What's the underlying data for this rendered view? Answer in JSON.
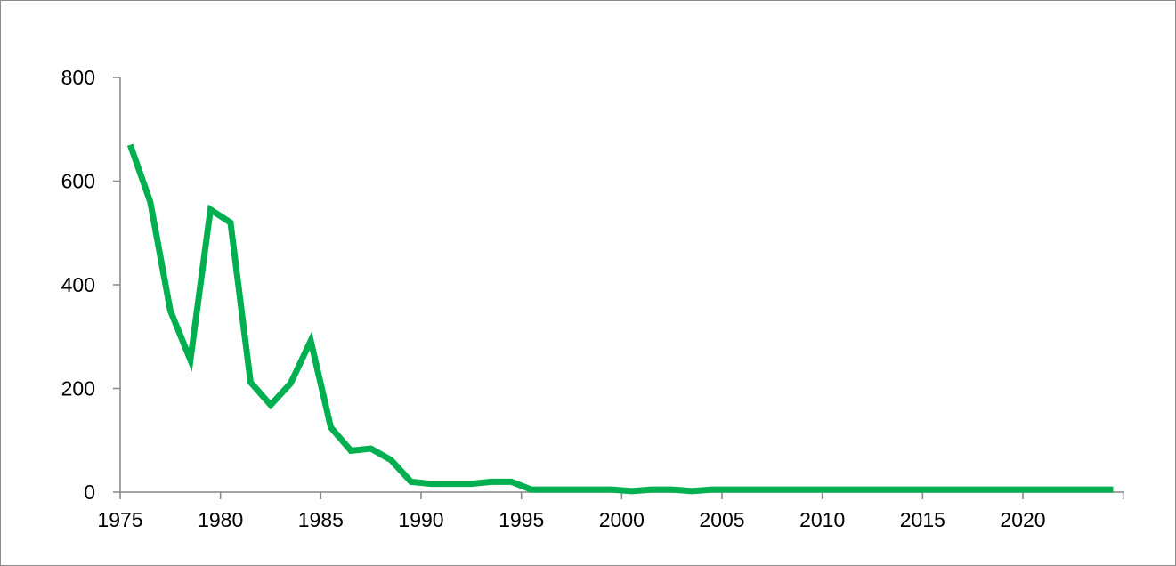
{
  "chart_data": {
    "type": "line",
    "title": "",
    "xlabel": "",
    "ylabel": "",
    "ylim": [
      0,
      800
    ],
    "xlim": [
      1975,
      2025
    ],
    "y_ticks": [
      0,
      200,
      400,
      600,
      800
    ],
    "x_ticks": [
      1975,
      1980,
      1985,
      1990,
      1995,
      2000,
      2005,
      2010,
      2015,
      2020
    ],
    "grid": false,
    "legend": "none",
    "series": [
      {
        "color": "#00b050",
        "x": [
          1975,
          1976,
          1977,
          1978,
          1979,
          1980,
          1981,
          1982,
          1983,
          1984,
          1985,
          1986,
          1987,
          1988,
          1989,
          1990,
          1991,
          1992,
          1993,
          1994,
          1995,
          1996,
          1997,
          1998,
          1999,
          2000,
          2001,
          2002,
          2003,
          2004,
          2005,
          2006,
          2007,
          2008,
          2009,
          2010,
          2011,
          2012,
          2013,
          2014,
          2015,
          2016,
          2017,
          2018,
          2019,
          2020,
          2021,
          2022,
          2023,
          2024
        ],
        "values": [
          670,
          560,
          350,
          255,
          545,
          520,
          212,
          168,
          210,
          292,
          125,
          80,
          84,
          62,
          20,
          16,
          16,
          16,
          20,
          20,
          5,
          5,
          5,
          5,
          5,
          2,
          5,
          5,
          2,
          5,
          5,
          5,
          5,
          5,
          5,
          5,
          5,
          5,
          5,
          5,
          5,
          5,
          5,
          5,
          5,
          5,
          5,
          5,
          5,
          5
        ]
      }
    ]
  }
}
